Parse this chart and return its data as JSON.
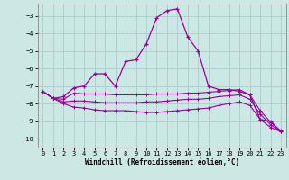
{
  "xlabel": "Windchill (Refroidissement éolien,°C)",
  "x": [
    0,
    1,
    2,
    3,
    4,
    5,
    6,
    7,
    8,
    9,
    10,
    11,
    12,
    13,
    14,
    15,
    16,
    17,
    18,
    19,
    20,
    21,
    22,
    23
  ],
  "line1": [
    -7.3,
    -7.7,
    -7.6,
    -7.1,
    -7.0,
    -6.3,
    -6.3,
    -7.0,
    -5.6,
    -5.5,
    -4.6,
    -3.1,
    -2.7,
    -2.6,
    -4.2,
    -5.0,
    -7.0,
    -7.2,
    -7.2,
    -7.3,
    -7.5,
    -8.9,
    -9.0,
    -9.6
  ],
  "line2": [
    -7.3,
    -7.7,
    -7.75,
    -7.4,
    -7.45,
    -7.45,
    -7.45,
    -7.5,
    -7.5,
    -7.5,
    -7.5,
    -7.45,
    -7.45,
    -7.45,
    -7.4,
    -7.4,
    -7.35,
    -7.3,
    -7.25,
    -7.2,
    -7.5,
    -8.4,
    -9.05,
    -9.55
  ],
  "line3": [
    -7.3,
    -7.7,
    -7.9,
    -7.85,
    -7.85,
    -7.9,
    -7.95,
    -7.95,
    -7.95,
    -7.95,
    -7.9,
    -7.9,
    -7.85,
    -7.8,
    -7.75,
    -7.75,
    -7.7,
    -7.6,
    -7.55,
    -7.5,
    -7.75,
    -8.6,
    -9.2,
    -9.6
  ],
  "line4": [
    -7.3,
    -7.7,
    -8.0,
    -8.2,
    -8.25,
    -8.35,
    -8.4,
    -8.4,
    -8.4,
    -8.45,
    -8.5,
    -8.5,
    -8.45,
    -8.4,
    -8.35,
    -8.3,
    -8.25,
    -8.1,
    -8.0,
    -7.9,
    -8.1,
    -8.9,
    -9.35,
    -9.6
  ],
  "line_color": "#990099",
  "bg_color": "#cce8e4",
  "grid_color": "#aacccc",
  "ylim": [
    -10.5,
    -2.3
  ],
  "yticks": [
    -10,
    -9,
    -8,
    -7,
    -6,
    -5,
    -4,
    -3
  ],
  "xticks": [
    0,
    1,
    2,
    3,
    4,
    5,
    6,
    7,
    8,
    9,
    10,
    11,
    12,
    13,
    14,
    15,
    16,
    17,
    18,
    19,
    20,
    21,
    22,
    23
  ]
}
